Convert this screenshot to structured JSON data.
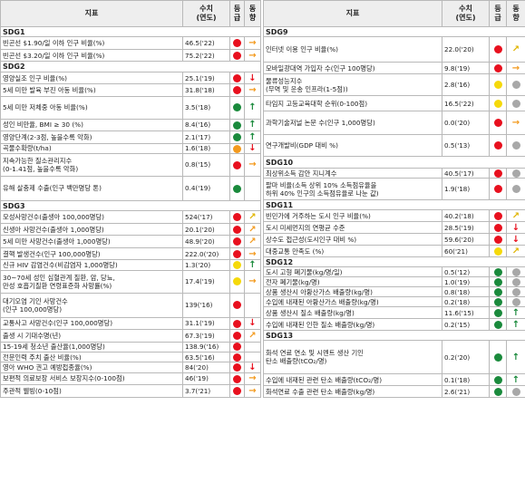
{
  "headers": {
    "indicator": "지표",
    "value_line1": "수치",
    "value_line2": "(연도)",
    "grade_line1": "등",
    "grade_line2": "급",
    "trend_line1": "동",
    "trend_line2": "향"
  },
  "colors": {
    "red": "#e8101e",
    "orange": "#f39a1e",
    "yellow": "#f5d90a",
    "green": "#1a8a3c",
    "gray": "#a8a8a8",
    "arrow_red": "#e8101e",
    "arrow_orange": "#f39a1e",
    "arrow_yellow": "#e0b400",
    "arrow_green": "#1a8a3c"
  },
  "left": [
    {
      "kind": "section",
      "label": "SDG1",
      "h": 11
    },
    {
      "name": "빈곤선 $1.90/일 이하 인구 비율(%)",
      "value": "46.5('22)",
      "dot": "red",
      "arrow": "right",
      "arrow_color": "orange",
      "h": 13
    },
    {
      "name": "빈곤선 $3.20/일 이하 인구 비율(%)",
      "value": "75.2('22)",
      "dot": "red",
      "arrow": "right",
      "arrow_color": "orange",
      "h": 13
    },
    {
      "kind": "section",
      "label": "SDG2",
      "h": 11
    },
    {
      "name": "영양실조 인구 비율(%)",
      "value": "25.1('19)",
      "dot": "red",
      "arrow": "down",
      "arrow_color": "red",
      "h": 13
    },
    {
      "name": "5세 미만 발육 부진 아동 비율(%)",
      "value": "31.8('18)",
      "dot": "red",
      "arrow": "right",
      "arrow_color": "orange",
      "h": 13
    },
    {
      "name": "5세 미만 저체중 아동 비율(%)",
      "value": "3.5('18)",
      "dot": "green",
      "arrow": "up",
      "arrow_color": "green",
      "h": 24
    },
    {
      "name": "성인 비만율, BMI ≥ 30 (%)",
      "value": "8.4('16)",
      "dot": "green",
      "arrow": "up",
      "arrow_color": "green",
      "h": 13
    },
    {
      "name": "영양단계(2-3점, 높을수록 악화)",
      "value": "2.1('17)",
      "dot": "green",
      "arrow": "up",
      "arrow_color": "green",
      "h": 13
    },
    {
      "name": "곡물수확량(t/ha)",
      "value": "1.6('18)",
      "dot": "orange",
      "arrow": "down",
      "arrow_color": "red",
      "h": 11
    },
    {
      "name": "지속가능한 질소관리지수\n(0-1.41점, 높을수록 악화)",
      "value": "0.8('15)",
      "dot": "red",
      "arrow": "right",
      "arrow_color": "orange",
      "h": 24
    },
    {
      "name": "유해 살충제 수출(인구 백만명당 톤)",
      "value": "0.4('19)",
      "dot": "green",
      "arrow": "",
      "arrow_color": "green",
      "h": 26
    },
    {
      "kind": "section",
      "label": "SDG3",
      "h": 11
    },
    {
      "name": "모성사망건수(출생아 100,000명당)",
      "value": "524('17)",
      "dot": "red",
      "arrow": "upright",
      "arrow_color": "yellow",
      "h": 13
    },
    {
      "name": "신생아 사망건수(출생아 1,000명당)",
      "value": "20.1('20)",
      "dot": "red",
      "arrow": "upright",
      "arrow_color": "orange",
      "h": 13
    },
    {
      "name": "5세 미만 사망건수(출생아 1,000명당)",
      "value": "48.9('20)",
      "dot": "red",
      "arrow": "upright",
      "arrow_color": "orange",
      "h": 13
    },
    {
      "name": "결핵 발생건수(인구 100,000명당)",
      "value": "222.0('20)",
      "dot": "red",
      "arrow": "right",
      "arrow_color": "orange",
      "h": 13
    },
    {
      "name": "신규 HIV 감염건수(비감염자 1,000명당)",
      "value": "1.3('20)",
      "dot": "yellow",
      "arrow": "up",
      "arrow_color": "green",
      "h": 11
    },
    {
      "name": "30~70세 성인 심혈관계 질환, 암, 당뇨,\n만성 호흡기질환 연령표준화 사망률(%)",
      "value": "17.4('19)",
      "dot": "yellow",
      "arrow": "right",
      "arrow_color": "orange",
      "h": 24
    },
    {
      "name": "대기오염 기인 사망건수\n(인구 100,000명당)",
      "value": "139('16)",
      "dot": "red",
      "arrow": "",
      "arrow_color": "orange",
      "h": 26
    },
    {
      "name": "교통사고 사망건수(인구 100,000명당)",
      "value": "31.1('19)",
      "dot": "red",
      "arrow": "down",
      "arrow_color": "red",
      "h": 13
    },
    {
      "name": "출생 시 기대수명(년)",
      "value": "67.3('19)",
      "dot": "red",
      "arrow": "upright",
      "arrow_color": "orange",
      "h": 13
    },
    {
      "name": "15-19세 청소년 출산율(1,000명당)",
      "value": "138.9('16)",
      "dot": "red",
      "arrow": "",
      "arrow_color": "orange",
      "h": 11
    },
    {
      "name": "전문인력 주치 출산 비율(%)",
      "value": "63.5('16)",
      "dot": "red",
      "arrow": "",
      "arrow_color": "orange",
      "h": 11
    },
    {
      "name": "영아 WHO 권고 예방접종율(%)",
      "value": "84('20)",
      "dot": "red",
      "arrow": "down",
      "arrow_color": "red",
      "h": 11
    },
    {
      "name": "보편적 의료보장 서비스 보장지수(0-100점)",
      "value": "46('19)",
      "dot": "red",
      "arrow": "right",
      "arrow_color": "orange",
      "h": 13
    },
    {
      "name": "주관적 웰빙(0-10점)",
      "value": "3.7('21)",
      "dot": "red",
      "arrow": "right",
      "arrow_color": "orange",
      "h": 13
    }
  ],
  "right": [
    {
      "kind": "section",
      "label": "SDG9",
      "h": 11
    },
    {
      "name": "인터넷 이용 인구 비율(%)",
      "value": "22.0('20)",
      "dot": "red",
      "arrow": "upright",
      "arrow_color": "yellow",
      "h": 28
    },
    {
      "name": "모바일광대역 가입자 수(인구 100명당)",
      "value": "9.8('19)",
      "dot": "red",
      "arrow": "right",
      "arrow_color": "orange",
      "h": 13
    },
    {
      "name": "물류성능지수\n(무역 및 운송 인프라(1-5점))",
      "value": "2.8('16)",
      "dot": "yellow",
      "arrow": "",
      "arrow_color": "gray",
      "dot2": "gray",
      "h": 24
    },
    {
      "name": "타임지 고등교육대학 순위(0-100점)",
      "value": "16.5('22)",
      "dot": "yellow",
      "arrow": "",
      "arrow_color": "gray",
      "dot2": "gray",
      "h": 17
    },
    {
      "name": "과학기술저널 논문 수(인구 1,000명당)",
      "value": "0.0('20)",
      "dot": "red",
      "arrow": "right",
      "arrow_color": "orange",
      "h": 26
    },
    {
      "name": "연구개발비(GDP 대비 %)",
      "value": "0.5('13)",
      "dot": "red",
      "arrow": "",
      "arrow_color": "gray",
      "dot2": "gray",
      "h": 24
    },
    {
      "kind": "section",
      "label": "SDG10",
      "h": 13
    },
    {
      "name": "최상위소득 감안 지니계수",
      "value": "40.5('17)",
      "dot": "red",
      "arrow": "",
      "arrow_color": "gray",
      "dot2": "gray",
      "h": 11
    },
    {
      "name": "팔마 비율(소득 상위 10% 소득점유율을\n하위 40% 인구의 소득점유율로 나눈 값)",
      "value": "1.9('18)",
      "dot": "red",
      "arrow": "",
      "arrow_color": "gray",
      "dot2": "gray",
      "h": 24
    },
    {
      "kind": "section",
      "label": "SDG11",
      "h": 11
    },
    {
      "name": "빈민가에 거주하는 도시 인구 비율(%)",
      "value": "40.2('18)",
      "dot": "red",
      "arrow": "upright",
      "arrow_color": "yellow",
      "h": 13
    },
    {
      "name": "도시 미세먼지의 연평균 수준",
      "value": "28.5('19)",
      "dot": "red",
      "arrow": "down",
      "arrow_color": "red",
      "h": 13
    },
    {
      "name": "상수도 접근성(도시인구 대비 %)",
      "value": "59.6('20)",
      "dot": "red",
      "arrow": "down",
      "arrow_color": "red",
      "h": 13
    },
    {
      "name": "대중교통 만족도 (%)",
      "value": "60('21)",
      "dot": "yellow",
      "arrow": "upright",
      "arrow_color": "yellow",
      "h": 13
    },
    {
      "kind": "section",
      "label": "SDG12",
      "h": 11
    },
    {
      "name": "도시 고형 폐기물(kg/명/일)",
      "value": "0.5('12)",
      "dot": "green",
      "arrow": "",
      "arrow_color": "gray",
      "dot2": "gray",
      "h": 11
    },
    {
      "name": "전자 폐기물(kg/명)",
      "value": "1.0('19)",
      "dot": "green",
      "arrow": "",
      "arrow_color": "gray",
      "dot2": "gray",
      "h": 11
    },
    {
      "name": "상품 생산시 아황산가스 배출량(kg/명)",
      "value": "0.8('18)",
      "dot": "green",
      "arrow": "",
      "arrow_color": "gray",
      "dot2": "gray",
      "h": 11
    },
    {
      "name": "수입에 내재된 아황산가스 배출량(kg/명)",
      "value": "0.2('18)",
      "dot": "green",
      "arrow": "",
      "arrow_color": "gray",
      "dot2": "gray",
      "h": 11
    },
    {
      "name": "상품 생산시 질소 배출량(kg/명)",
      "value": "11.6('15)",
      "dot": "green",
      "arrow": "up",
      "arrow_color": "green",
      "h": 13
    },
    {
      "name": "수입에 내재된 인한 질소 배출량(kg/명)",
      "value": "0.2('15)",
      "dot": "green",
      "arrow": "up",
      "arrow_color": "green",
      "h": 13
    },
    {
      "kind": "section",
      "label": "SDG13",
      "h": 11
    },
    {
      "name": "화석 연료 연소 및 시멘트 생산 기인\n탄소 배출량(tCO₂/명)",
      "value": "0.2('20)",
      "dot": "green",
      "arrow": "up",
      "arrow_color": "green",
      "h": 37
    },
    {
      "name": "수입에 내재된 관련 탄소 배출량(tCO₂/명)",
      "value": "0.1('18)",
      "dot": "green",
      "arrow": "up",
      "arrow_color": "green",
      "h": 13
    },
    {
      "name": "화석연료 수출 관련 탄소 배출량(kg/명)",
      "value": "2.6('21)",
      "dot": "green",
      "arrow": "",
      "arrow_color": "gray",
      "dot2": "gray",
      "h": 13
    }
  ]
}
